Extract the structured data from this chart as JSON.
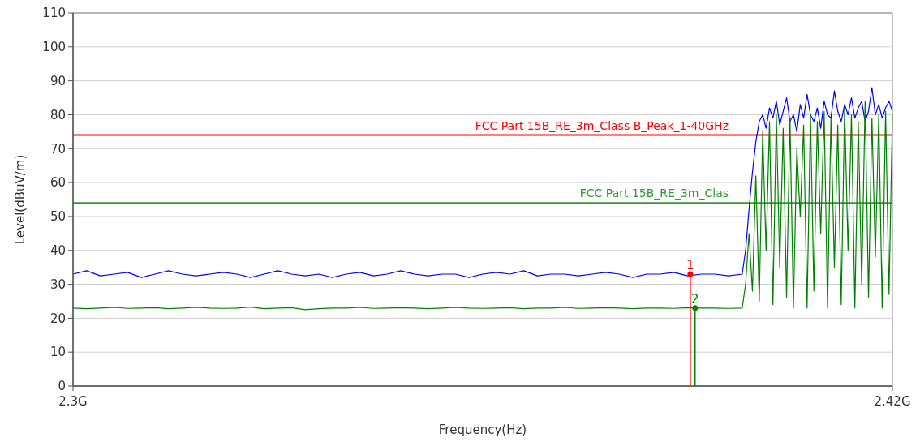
{
  "chart_data": {
    "type": "line",
    "xlabel": "Frequency(Hz)",
    "ylabel": "Level(dBuV/m)",
    "xlim": [
      2.3,
      2.42
    ],
    "xticks": [
      {
        "value": 2.3,
        "label": "2.3G"
      },
      {
        "value": 2.42,
        "label": "2.42G"
      }
    ],
    "ylim": [
      0,
      110
    ],
    "yticks": [
      0,
      10,
      20,
      30,
      40,
      50,
      60,
      70,
      80,
      90,
      100,
      110
    ],
    "grid": "y",
    "x": [
      2.3,
      2.302,
      2.304,
      2.306,
      2.308,
      2.31,
      2.312,
      2.314,
      2.316,
      2.318,
      2.32,
      2.322,
      2.324,
      2.326,
      2.328,
      2.33,
      2.332,
      2.334,
      2.336,
      2.338,
      2.34,
      2.342,
      2.344,
      2.346,
      2.348,
      2.35,
      2.352,
      2.354,
      2.356,
      2.358,
      2.36,
      2.362,
      2.364,
      2.366,
      2.368,
      2.37,
      2.372,
      2.374,
      2.376,
      2.378,
      2.38,
      2.382,
      2.384,
      2.386,
      2.388,
      2.39,
      2.392,
      2.394,
      2.396,
      2.398,
      2.3985,
      2.399,
      2.3995,
      2.4,
      2.4005,
      2.401,
      2.4015,
      2.402,
      2.4025,
      2.403,
      2.4035,
      2.404,
      2.4045,
      2.405,
      2.4055,
      2.406,
      2.4065,
      2.407,
      2.4075,
      2.408,
      2.4085,
      2.409,
      2.4095,
      2.41,
      2.4105,
      2.411,
      2.4115,
      2.412,
      2.4125,
      2.413,
      2.4135,
      2.414,
      2.4145,
      2.415,
      2.4155,
      2.416,
      2.4165,
      2.417,
      2.4175,
      2.418,
      2.4185,
      2.419,
      2.4195,
      2.42
    ],
    "series": [
      {
        "color": "#0000ff",
        "values": [
          33,
          34,
          32.5,
          33,
          33.5,
          32,
          33,
          34,
          33,
          32.5,
          33,
          33.5,
          33,
          32,
          33,
          34,
          33,
          32.5,
          33,
          32,
          33,
          33.5,
          32.5,
          33,
          34,
          33,
          32.5,
          33,
          33,
          32,
          33,
          33.5,
          33,
          34,
          32.5,
          33,
          33,
          32.5,
          33,
          33.5,
          33,
          32,
          33,
          33,
          33.5,
          32.5,
          33,
          33,
          32.5,
          33,
          40,
          52,
          63,
          72,
          78,
          80,
          76,
          82,
          79,
          84,
          77,
          81,
          85,
          78,
          80,
          75,
          83,
          79,
          86,
          80,
          78,
          82,
          76,
          84,
          80,
          79,
          87,
          81,
          78,
          83,
          80,
          85,
          79,
          82,
          84,
          78,
          81,
          88,
          80,
          83,
          79,
          82,
          84,
          81
        ]
      },
      {
        "color": "#008000",
        "values": [
          23,
          22.8,
          23,
          23.2,
          22.9,
          23,
          23.1,
          22.8,
          23,
          23.2,
          23,
          22.9,
          23,
          23.3,
          22.8,
          23,
          23.1,
          22.5,
          22.8,
          23,
          23,
          23.2,
          22.9,
          23,
          23.1,
          23,
          22.8,
          23,
          23.2,
          23,
          22.9,
          23,
          23.1,
          22.8,
          23,
          23,
          23.2,
          22.9,
          23,
          23.1,
          23,
          22.8,
          23,
          23,
          22.9,
          23.1,
          23,
          23,
          22.9,
          23,
          30,
          45,
          28,
          62,
          25,
          75,
          40,
          78,
          24,
          80,
          35,
          76,
          26,
          79,
          23,
          70,
          50,
          77,
          23,
          80,
          28,
          78,
          45,
          81,
          23,
          79,
          35,
          77,
          24,
          82,
          40,
          80,
          23,
          78,
          30,
          84,
          26,
          79,
          38,
          80,
          23,
          81,
          27,
          80
        ]
      },
      {
        "type": "lollipop",
        "color": "#ff0000",
        "x": [
          2.3904
        ],
        "values": [
          33
        ]
      },
      {
        "type": "lollipop",
        "color": "#008000",
        "x": [
          2.3911
        ],
        "values": [
          23
        ]
      }
    ],
    "ref_lines": [
      {
        "axis": "y",
        "value": 74,
        "label": "FCC Part 15B_RE_3m_Class B_Peak_1-40GHz",
        "color": "#ff0000"
      },
      {
        "axis": "y",
        "value": 54,
        "label": "FCC Part 15B_RE_3m_Clas",
        "color": "#339933"
      }
    ],
    "annotations": [
      {
        "text": "1",
        "x": 2.3904,
        "y": 33
      },
      {
        "text": "2",
        "x": 2.3911,
        "y": 23
      }
    ]
  }
}
